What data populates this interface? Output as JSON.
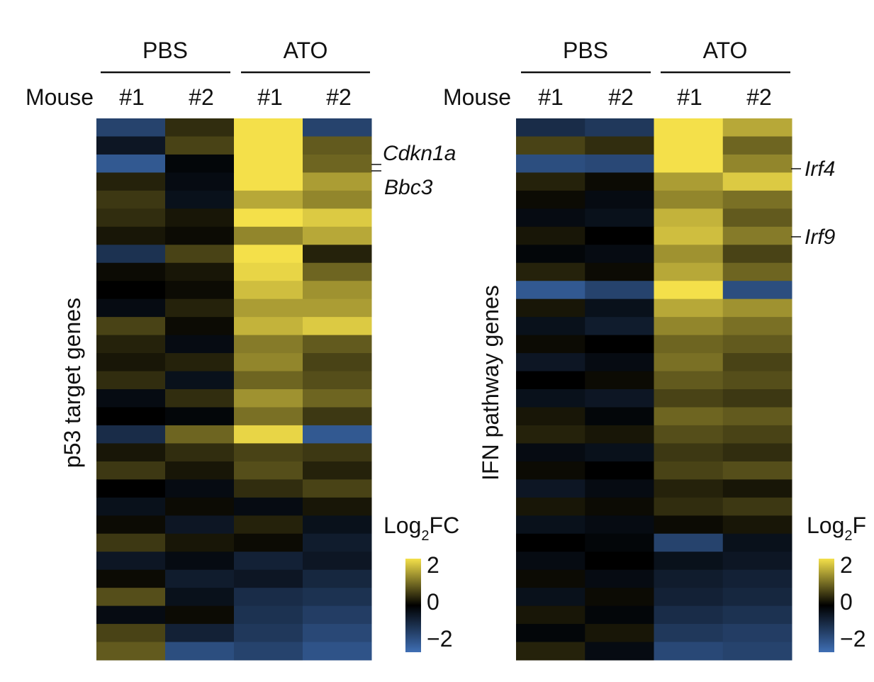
{
  "chart_data": [
    {
      "type": "heatmap",
      "panel": "left",
      "group_labels": [
        "PBS",
        "ATO"
      ],
      "mouse_label": "Mouse",
      "columns": [
        "#1",
        "#2",
        "#1",
        "#2"
      ],
      "column_groups": [
        "PBS",
        "PBS",
        "ATO",
        "ATO"
      ],
      "ylabel": "p53 target genes",
      "annotations": [
        {
          "gene": "Cdkn1a",
          "row": 5
        },
        {
          "gene": "Bbc3",
          "row": 7
        }
      ],
      "colorbar": {
        "title_base": "Log",
        "title_sub": "2",
        "title_rest": "FC",
        "ticks": [
          "2",
          "0",
          "−2"
        ],
        "range": [
          -2,
          2
        ]
      },
      "color_scale": {
        "low": "#3f6fb5",
        "mid": "#000000",
        "high": "#f4e04a"
      },
      "rows_per_column_estimated": true,
      "values_coarse": [
        [
          -1.2,
          0.4,
          2.0,
          -1.2
        ],
        [
          -0.4,
          0.6,
          2.0,
          0.8
        ],
        [
          -1.6,
          -0.1,
          2.0,
          0.9
        ],
        [
          0.3,
          -0.2,
          2.0,
          1.4
        ],
        [
          0.5,
          -0.3,
          1.5,
          1.2
        ],
        [
          0.4,
          0.2,
          2.0,
          1.8
        ],
        [
          0.2,
          0.1,
          1.2,
          1.5
        ],
        [
          -0.9,
          0.6,
          2.0,
          0.3
        ],
        [
          0.1,
          0.2,
          1.9,
          0.9
        ],
        [
          0.0,
          0.1,
          1.7,
          1.3
        ],
        [
          -0.2,
          0.3,
          1.4,
          1.4
        ],
        [
          0.6,
          0.1,
          1.6,
          1.8
        ],
        [
          0.3,
          -0.2,
          1.1,
          0.8
        ],
        [
          0.2,
          0.3,
          1.2,
          0.6
        ],
        [
          0.4,
          -0.3,
          0.9,
          0.7
        ],
        [
          -0.2,
          0.4,
          1.3,
          0.9
        ],
        [
          0.0,
          -0.1,
          1.0,
          0.5
        ],
        [
          -0.8,
          0.9,
          1.9,
          -1.6
        ],
        [
          0.2,
          0.4,
          0.6,
          0.5
        ],
        [
          0.5,
          0.2,
          0.7,
          0.3
        ],
        [
          0.0,
          -0.2,
          0.4,
          0.6
        ],
        [
          -0.3,
          0.1,
          -0.2,
          0.2
        ],
        [
          0.1,
          -0.4,
          0.3,
          -0.3
        ],
        [
          0.5,
          0.2,
          0.1,
          -0.5
        ],
        [
          -0.4,
          -0.2,
          -0.6,
          -0.4
        ],
        [
          0.1,
          -0.5,
          -0.4,
          -0.7
        ],
        [
          0.7,
          -0.3,
          -0.8,
          -0.9
        ],
        [
          -0.2,
          0.1,
          -0.9,
          -1.1
        ],
        [
          0.6,
          -0.6,
          -1.0,
          -1.3
        ],
        [
          0.8,
          -1.4,
          -1.2,
          -1.5
        ]
      ]
    },
    {
      "type": "heatmap",
      "panel": "right",
      "group_labels": [
        "PBS",
        "ATO"
      ],
      "mouse_label": "Mouse",
      "columns": [
        "#1",
        "#2",
        "#1",
        "#2"
      ],
      "column_groups": [
        "PBS",
        "PBS",
        "ATO",
        "ATO"
      ],
      "ylabel": "IFN pathway genes",
      "annotations": [
        {
          "gene": "Irf4",
          "row": 4
        },
        {
          "gene": "Irf9",
          "row": 10
        }
      ],
      "colorbar": {
        "title_base": "Log",
        "title_sub": "2",
        "title_rest": "F",
        "ticks": [
          "2",
          "0",
          "−2"
        ],
        "range": [
          -2,
          2
        ]
      },
      "color_scale": {
        "low": "#3f6fb5",
        "mid": "#000000",
        "high": "#f4e04a"
      },
      "rows_per_column_estimated": true,
      "values_coarse": [
        [
          -0.8,
          -1.0,
          2.0,
          1.5
        ],
        [
          0.6,
          0.4,
          2.0,
          0.9
        ],
        [
          -1.4,
          -1.3,
          2.0,
          1.2
        ],
        [
          0.3,
          0.1,
          1.4,
          1.8
        ],
        [
          0.1,
          -0.2,
          1.2,
          1.0
        ],
        [
          -0.2,
          -0.3,
          1.6,
          0.8
        ],
        [
          0.2,
          0.0,
          1.7,
          1.1
        ],
        [
          -0.1,
          -0.2,
          1.3,
          0.6
        ],
        [
          0.3,
          0.1,
          1.5,
          0.9
        ],
        [
          -1.6,
          -1.2,
          2.0,
          -1.4
        ],
        [
          0.2,
          -0.3,
          1.5,
          1.3
        ],
        [
          -0.3,
          -0.5,
          1.2,
          1.0
        ],
        [
          0.1,
          0.0,
          0.9,
          0.8
        ],
        [
          -0.4,
          -0.2,
          1.0,
          0.6
        ],
        [
          0.0,
          0.1,
          0.8,
          0.7
        ],
        [
          -0.3,
          -0.4,
          0.6,
          0.5
        ],
        [
          0.2,
          -0.1,
          0.9,
          0.8
        ],
        [
          0.3,
          0.2,
          0.7,
          0.6
        ],
        [
          -0.2,
          -0.3,
          0.5,
          0.4
        ],
        [
          0.1,
          0.0,
          0.6,
          0.7
        ],
        [
          -0.4,
          -0.2,
          0.3,
          0.2
        ],
        [
          0.2,
          0.1,
          0.4,
          0.5
        ],
        [
          -0.3,
          -0.2,
          0.1,
          0.2
        ],
        [
          0.0,
          -0.1,
          -1.2,
          -0.3
        ],
        [
          -0.2,
          0.0,
          -0.3,
          -0.4
        ],
        [
          0.1,
          -0.2,
          -0.5,
          -0.6
        ],
        [
          -0.3,
          0.1,
          -0.6,
          -0.7
        ],
        [
          0.2,
          -0.1,
          -0.8,
          -0.9
        ],
        [
          -0.1,
          0.2,
          -1.0,
          -1.1
        ],
        [
          0.3,
          -0.2,
          -1.3,
          -1.2
        ]
      ]
    }
  ]
}
